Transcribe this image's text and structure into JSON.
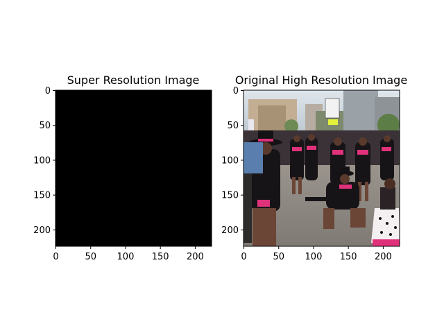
{
  "figure": {
    "background": "#ffffff"
  },
  "chart_data": [
    {
      "type": "heatmap",
      "title": "Super Resolution Image",
      "image": "solid black square (all pixels zero)",
      "fill_color": "#000000",
      "xlim": [
        0,
        223
      ],
      "ylim": [
        223,
        0
      ],
      "x_ticks": [
        "0",
        "50",
        "100",
        "150",
        "200"
      ],
      "y_ticks": [
        "0",
        "50",
        "100",
        "150",
        "200"
      ],
      "grid": false
    },
    {
      "type": "heatmap",
      "title": "Original High Resolution Image",
      "image": "photo of a street parade: dancers in black outfits with pink scarves and black hats, crowd and buildings behind",
      "fill_color": "#6b6258",
      "xlim": [
        0,
        223
      ],
      "ylim": [
        223,
        0
      ],
      "x_ticks": [
        "0",
        "50",
        "100",
        "150",
        "200"
      ],
      "y_ticks": [
        "0",
        "50",
        "100",
        "150",
        "200"
      ],
      "grid": false,
      "photo_palette": {
        "sky": "#c9d3dc",
        "buildings": "#b8a58c",
        "street": "#8f8a84",
        "outfit": "#171417",
        "accent": "#e0327a",
        "skin": "#5a3a2c"
      }
    }
  ]
}
